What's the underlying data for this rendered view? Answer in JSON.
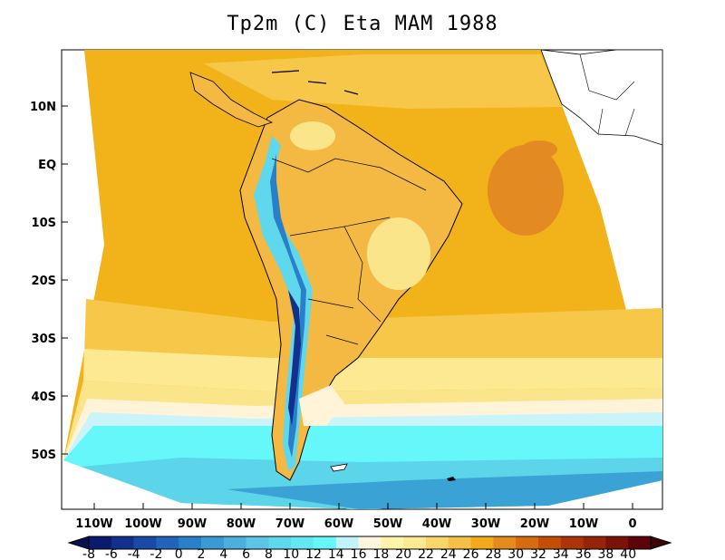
{
  "title": "Tp2m (C) Eta MAM 1988",
  "map": {
    "lat_labels": [
      "10N",
      "EQ",
      "10S",
      "20S",
      "30S",
      "40S",
      "50S"
    ],
    "lon_labels": [
      "110W",
      "100W",
      "90W",
      "80W",
      "70W",
      "60W",
      "50W",
      "40W",
      "30W",
      "20W",
      "10W",
      "0"
    ]
  },
  "colorbar": {
    "labels": [
      "-8",
      "-6",
      "-4",
      "-2",
      "0",
      "2",
      "4",
      "6",
      "8",
      "10",
      "12",
      "14",
      "16",
      "18",
      "20",
      "22",
      "24",
      "26",
      "28",
      "30",
      "32",
      "34",
      "36",
      "38",
      "40"
    ],
    "colors": [
      "#0a1a6e",
      "#12318c",
      "#1a4aa8",
      "#2064bb",
      "#2a80c8",
      "#3a9ad4",
      "#4cb0dc",
      "#5cc4e4",
      "#5fd7ec",
      "#62e8f2",
      "#66f7fa",
      "#bff4fb",
      "#fff6df",
      "#fff4a8",
      "#fde992",
      "#f9d56a",
      "#f5c048",
      "#f0aa1a",
      "#e68a1e",
      "#d86a10",
      "#c44d08",
      "#ad3406",
      "#962408",
      "#7a1208",
      "#5c0408"
    ],
    "arrow_left_color": "#08104f",
    "arrow_right_color": "#3d0206"
  }
}
